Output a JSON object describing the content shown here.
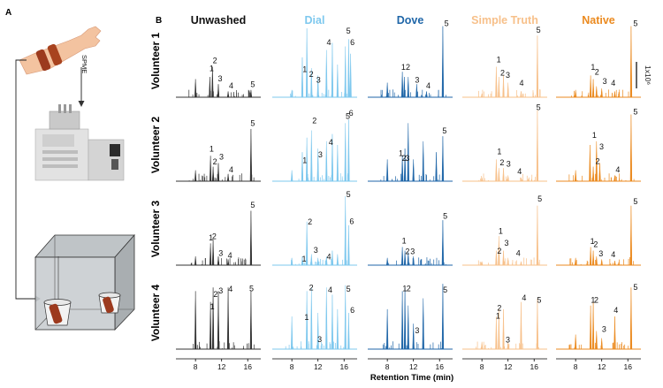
{
  "panel_a_label": "A",
  "panel_b_label": "B",
  "spme_label": "SPME",
  "x_axis_title": "Retention Time (min)",
  "scale_bar_label": "1x10⁶",
  "x_ticks": [
    8,
    12,
    16
  ],
  "x_range": [
    5,
    18
  ],
  "soaps": [
    {
      "name": "Unwashed",
      "color": "#333333",
      "label_color": "#111111"
    },
    {
      "name": "Dial",
      "color": "#7ec8ee",
      "label_color": "#7ec8ee"
    },
    {
      "name": "Dove",
      "color": "#1f66a8",
      "label_color": "#1f66a8"
    },
    {
      "name": "Simple Truth",
      "color": "#f7c08a",
      "label_color": "#f7c08a"
    },
    {
      "name": "Native",
      "color": "#eb8a1f",
      "label_color": "#eb8a1f"
    }
  ],
  "volunteers": [
    "Volunteer 1",
    "Volunteer 2",
    "Volunteer 3",
    "Volunteer 4"
  ],
  "chart_data": {
    "type": "line",
    "title": "",
    "xlabel": "Retention Time (min)",
    "ylabel": "",
    "xlim": [
      5,
      18
    ],
    "ylim": [
      0,
      1
    ],
    "panels": [
      {
        "volunteer": "Volunteer 1",
        "soap": "Unwashed",
        "x": [
          8.0,
          10.2,
          10.6,
          11.5,
          13.0,
          16.5
        ],
        "y": [
          0.25,
          0.28,
          0.42,
          0.18,
          0.08,
          0.1
        ],
        "peak_labels": [
          {
            "text": "1",
            "x": 10.2,
            "y": 0.36
          },
          {
            "text": "2",
            "x": 10.7,
            "y": 0.47
          },
          {
            "text": "3",
            "x": 11.5,
            "y": 0.22
          },
          {
            "text": "4",
            "x": 13.2,
            "y": 0.12
          },
          {
            "text": "5",
            "x": 16.5,
            "y": 0.14
          }
        ]
      },
      {
        "volunteer": "Volunteer 1",
        "soap": "Dial",
        "x": [
          8.0,
          9.6,
          10.3,
          11.0,
          12.0,
          13.3,
          14.2,
          15.0,
          16.2,
          16.7,
          17.0
        ],
        "y": [
          0.1,
          0.55,
          0.95,
          0.4,
          0.3,
          0.65,
          0.75,
          0.45,
          0.7,
          0.8,
          0.6
        ],
        "peak_labels": [
          {
            "text": "1",
            "x": 9.7,
            "y": 0.35
          },
          {
            "text": "2",
            "x": 10.7,
            "y": 0.28
          },
          {
            "text": "3",
            "x": 11.8,
            "y": 0.2
          },
          {
            "text": "4",
            "x": 13.4,
            "y": 0.72
          },
          {
            "text": "5",
            "x": 16.4,
            "y": 0.88
          },
          {
            "text": "6",
            "x": 17.0,
            "y": 0.72
          }
        ]
      },
      {
        "volunteer": "Volunteer 1",
        "soap": "Dove",
        "x": [
          8.0,
          10.3,
          10.6,
          11.2,
          12.5,
          14.0,
          16.5
        ],
        "y": [
          0.2,
          0.35,
          0.28,
          0.28,
          0.18,
          0.08,
          0.98
        ],
        "peak_labels": [
          {
            "text": "1",
            "x": 10.2,
            "y": 0.38
          },
          {
            "text": "2",
            "x": 10.9,
            "y": 0.38
          },
          {
            "text": "3",
            "x": 12.3,
            "y": 0.2
          },
          {
            "text": "4",
            "x": 14.0,
            "y": 0.12
          },
          {
            "text": "5",
            "x": 16.8,
            "y": 0.98
          }
        ]
      },
      {
        "volunteer": "Volunteer 1",
        "soap": "Simple Truth",
        "x": [
          8.0,
          10.2,
          10.6,
          11.3,
          12.0,
          14.0,
          16.5
        ],
        "y": [
          0.05,
          0.42,
          0.28,
          0.3,
          0.2,
          0.08,
          0.85
        ],
        "peak_labels": [
          {
            "text": "1",
            "x": 10.3,
            "y": 0.48
          },
          {
            "text": "2",
            "x": 10.9,
            "y": 0.3
          },
          {
            "text": "3",
            "x": 11.7,
            "y": 0.27
          },
          {
            "text": "4",
            "x": 13.8,
            "y": 0.16
          },
          {
            "text": "5",
            "x": 16.4,
            "y": 0.89
          }
        ]
      },
      {
        "volunteer": "Volunteer 1",
        "soap": "Native",
        "x": [
          8.0,
          10.3,
          10.7,
          11.2,
          12.0,
          14.0,
          16.5
        ],
        "y": [
          0.1,
          0.3,
          0.25,
          0.15,
          0.12,
          0.08,
          0.98
        ],
        "peak_labels": [
          {
            "text": "1",
            "x": 10.4,
            "y": 0.38
          },
          {
            "text": "2",
            "x": 11.0,
            "y": 0.31
          },
          {
            "text": "3",
            "x": 12.2,
            "y": 0.18
          },
          {
            "text": "4",
            "x": 13.5,
            "y": 0.16
          },
          {
            "text": "5",
            "x": 16.9,
            "y": 0.98
          }
        ]
      },
      {
        "volunteer": "Volunteer 2",
        "soap": "Unwashed",
        "x": [
          8.0,
          10.3,
          10.7,
          11.5,
          13.0,
          16.5
        ],
        "y": [
          0.15,
          0.35,
          0.2,
          0.25,
          0.1,
          0.72
        ],
        "peak_labels": [
          {
            "text": "1",
            "x": 10.2,
            "y": 0.41
          },
          {
            "text": "2",
            "x": 10.7,
            "y": 0.23
          },
          {
            "text": "3",
            "x": 11.7,
            "y": 0.3
          },
          {
            "text": "4",
            "x": 13.2,
            "y": 0.12
          },
          {
            "text": "5",
            "x": 16.5,
            "y": 0.76
          }
        ]
      },
      {
        "volunteer": "Volunteer 2",
        "soap": "Dial",
        "x": [
          8.0,
          9.6,
          10.3,
          11.0,
          12.0,
          13.3,
          14.2,
          15.0,
          16.2,
          16.7
        ],
        "y": [
          0.15,
          0.4,
          0.6,
          0.7,
          0.45,
          0.55,
          0.65,
          0.5,
          0.8,
          0.85
        ],
        "peak_labels": [
          {
            "text": "1",
            "x": 9.7,
            "y": 0.25
          },
          {
            "text": "2",
            "x": 11.2,
            "y": 0.8
          },
          {
            "text": "3",
            "x": 12.1,
            "y": 0.33
          },
          {
            "text": "4",
            "x": 13.7,
            "y": 0.5
          },
          {
            "text": "5",
            "x": 16.3,
            "y": 0.86
          },
          {
            "text": "6",
            "x": 16.8,
            "y": 0.9
          }
        ]
      },
      {
        "volunteer": "Volunteer 2",
        "soap": "Dove",
        "x": [
          8.0,
          10.3,
          10.7,
          11.2,
          12.0,
          13.5,
          15.5,
          16.5
        ],
        "y": [
          0.3,
          0.35,
          0.45,
          0.8,
          0.3,
          0.55,
          0.4,
          0.62
        ],
        "peak_labels": [
          {
            "text": "1",
            "x": 9.8,
            "y": 0.35
          },
          {
            "text": "2",
            "x": 10.3,
            "y": 0.28
          },
          {
            "text": "3",
            "x": 10.8,
            "y": 0.28
          },
          {
            "text": "5",
            "x": 16.5,
            "y": 0.66
          }
        ]
      },
      {
        "volunteer": "Volunteer 2",
        "soap": "Simple Truth",
        "x": [
          8.0,
          10.2,
          10.6,
          11.3,
          12.0,
          14.0,
          16.5
        ],
        "y": [
          0.05,
          0.3,
          0.18,
          0.18,
          0.08,
          0.05,
          0.98
        ],
        "peak_labels": [
          {
            "text": "1",
            "x": 10.4,
            "y": 0.37
          },
          {
            "text": "2",
            "x": 10.8,
            "y": 0.22
          },
          {
            "text": "3",
            "x": 11.8,
            "y": 0.2
          },
          {
            "text": "4",
            "x": 13.5,
            "y": 0.1
          },
          {
            "text": "5",
            "x": 16.4,
            "y": 0.98
          }
        ]
      },
      {
        "volunteer": "Volunteer 2",
        "soap": "Native",
        "x": [
          8.0,
          10.2,
          10.7,
          11.2,
          11.7,
          14.0,
          16.5
        ],
        "y": [
          0.15,
          0.5,
          0.2,
          0.55,
          0.25,
          0.08,
          0.92
        ],
        "peak_labels": [
          {
            "text": "1",
            "x": 10.6,
            "y": 0.6
          },
          {
            "text": "2",
            "x": 11.1,
            "y": 0.24
          },
          {
            "text": "3",
            "x": 11.7,
            "y": 0.44
          },
          {
            "text": "4",
            "x": 14.2,
            "y": 0.12
          },
          {
            "text": "5",
            "x": 16.9,
            "y": 0.92
          }
        ]
      },
      {
        "volunteer": "Volunteer 3",
        "soap": "Unwashed",
        "x": [
          8.0,
          10.3,
          10.7,
          11.5,
          13.0,
          16.5
        ],
        "y": [
          0.12,
          0.3,
          0.35,
          0.12,
          0.08,
          0.75
        ],
        "peak_labels": [
          {
            "text": "1",
            "x": 10.1,
            "y": 0.34
          },
          {
            "text": "2",
            "x": 10.6,
            "y": 0.36
          },
          {
            "text": "3",
            "x": 11.6,
            "y": 0.13
          },
          {
            "text": "4",
            "x": 13.0,
            "y": 0.1
          },
          {
            "text": "5",
            "x": 16.5,
            "y": 0.79
          }
        ]
      },
      {
        "volunteer": "Volunteer 3",
        "soap": "Dial",
        "x": [
          8.0,
          9.6,
          10.3,
          11.0,
          12.0,
          13.3,
          14.2,
          15.0,
          16.2,
          16.7
        ],
        "y": [
          0.1,
          0.12,
          0.6,
          0.15,
          0.1,
          0.12,
          0.2,
          0.15,
          0.95,
          0.55
        ],
        "peak_labels": [
          {
            "text": "1",
            "x": 9.6,
            "y": 0.05
          },
          {
            "text": "2",
            "x": 10.5,
            "y": 0.56
          },
          {
            "text": "3",
            "x": 11.4,
            "y": 0.17
          },
          {
            "text": "4",
            "x": 13.4,
            "y": 0.08
          },
          {
            "text": "5",
            "x": 16.4,
            "y": 0.94
          },
          {
            "text": "6",
            "x": 16.9,
            "y": 0.57
          }
        ]
      },
      {
        "volunteer": "Volunteer 3",
        "soap": "Dove",
        "x": [
          8.0,
          10.3,
          10.7,
          11.2,
          12.0,
          16.5
        ],
        "y": [
          0.1,
          0.25,
          0.2,
          0.18,
          0.12,
          0.62
        ],
        "peak_labels": [
          {
            "text": "1",
            "x": 10.3,
            "y": 0.3
          },
          {
            "text": "2",
            "x": 10.8,
            "y": 0.15
          },
          {
            "text": "3",
            "x": 11.6,
            "y": 0.15
          },
          {
            "text": "5",
            "x": 16.6,
            "y": 0.64
          }
        ]
      },
      {
        "volunteer": "Volunteer 3",
        "soap": "Simple Truth",
        "x": [
          8.0,
          10.2,
          10.6,
          11.3,
          12.0,
          14.0,
          16.5
        ],
        "y": [
          0.05,
          0.2,
          0.4,
          0.2,
          0.1,
          0.05,
          0.82
        ],
        "peak_labels": [
          {
            "text": "1",
            "x": 10.6,
            "y": 0.43
          },
          {
            "text": "2",
            "x": 10.4,
            "y": 0.16
          },
          {
            "text": "3",
            "x": 11.5,
            "y": 0.27
          },
          {
            "text": "4",
            "x": 13.3,
            "y": 0.13
          },
          {
            "text": "5",
            "x": 16.6,
            "y": 0.88
          }
        ]
      },
      {
        "volunteer": "Volunteer 3",
        "soap": "Native",
        "x": [
          8.0,
          10.3,
          10.7,
          11.2,
          12.0,
          14.0,
          16.5
        ],
        "y": [
          0.1,
          0.25,
          0.2,
          0.12,
          0.08,
          0.06,
          0.82
        ],
        "peak_labels": [
          {
            "text": "1",
            "x": 10.3,
            "y": 0.29
          },
          {
            "text": "2",
            "x": 10.8,
            "y": 0.25
          },
          {
            "text": "3",
            "x": 11.6,
            "y": 0.12
          },
          {
            "text": "4",
            "x": 13.5,
            "y": 0.11
          },
          {
            "text": "5",
            "x": 16.9,
            "y": 0.84
          }
        ]
      },
      {
        "volunteer": "Volunteer 4",
        "soap": "Unwashed",
        "x": [
          8.0,
          10.3,
          10.7,
          11.5,
          13.0,
          16.5
        ],
        "y": [
          0.8,
          0.65,
          0.85,
          0.8,
          0.85,
          0.8
        ],
        "peak_labels": [
          {
            "text": "1",
            "x": 10.3,
            "y": 0.55
          },
          {
            "text": "2",
            "x": 10.8,
            "y": 0.72
          },
          {
            "text": "3",
            "x": 11.6,
            "y": 0.77
          },
          {
            "text": "4",
            "x": 13.1,
            "y": 0.79
          },
          {
            "text": "5",
            "x": 16.3,
            "y": 0.8
          }
        ]
      },
      {
        "volunteer": "Volunteer 4",
        "soap": "Dial",
        "x": [
          8.0,
          10.3,
          11.0,
          12.0,
          13.3,
          14.2,
          15.0,
          16.2,
          16.7
        ],
        "y": [
          0.45,
          0.8,
          0.85,
          0.5,
          0.85,
          0.75,
          0.55,
          0.88,
          0.5
        ],
        "peak_labels": [
          {
            "text": "1",
            "x": 10.0,
            "y": 0.4
          },
          {
            "text": "2",
            "x": 10.7,
            "y": 0.81
          },
          {
            "text": "3",
            "x": 12.0,
            "y": 0.1
          },
          {
            "text": "4",
            "x": 13.6,
            "y": 0.78
          },
          {
            "text": "5",
            "x": 16.4,
            "y": 0.79
          },
          {
            "text": "6",
            "x": 17.0,
            "y": 0.5
          }
        ]
      },
      {
        "volunteer": "Volunteer 4",
        "soap": "Dove",
        "x": [
          8.0,
          10.3,
          10.7,
          11.2,
          12.0,
          13.5,
          16.5
        ],
        "y": [
          0.55,
          0.8,
          0.85,
          0.6,
          0.35,
          0.7,
          0.9
        ],
        "peak_labels": [
          {
            "text": "1",
            "x": 10.4,
            "y": 0.8
          },
          {
            "text": "2",
            "x": 11.0,
            "y": 0.8
          },
          {
            "text": "3",
            "x": 12.3,
            "y": 0.22
          },
          {
            "text": "5",
            "x": 16.6,
            "y": 0.78
          }
        ]
      },
      {
        "volunteer": "Volunteer 4",
        "soap": "Simple Truth",
        "x": [
          8.0,
          10.2,
          10.6,
          11.3,
          12.0,
          14.0,
          16.5
        ],
        "y": [
          0.1,
          0.45,
          0.55,
          0.55,
          0.1,
          0.65,
          0.7
        ],
        "peak_labels": [
          {
            "text": "1",
            "x": 10.2,
            "y": 0.42
          },
          {
            "text": "2",
            "x": 10.4,
            "y": 0.53
          },
          {
            "text": "3",
            "x": 11.7,
            "y": 0.09
          },
          {
            "text": "4",
            "x": 14.2,
            "y": 0.67
          },
          {
            "text": "5",
            "x": 16.5,
            "y": 0.64
          }
        ]
      },
      {
        "volunteer": "Volunteer 4",
        "soap": "Native",
        "x": [
          8.0,
          10.3,
          10.7,
          11.2,
          12.0,
          14.0,
          16.5
        ],
        "y": [
          0.2,
          0.6,
          0.65,
          0.25,
          0.15,
          0.45,
          0.85
        ],
        "peak_labels": [
          {
            "text": "1",
            "x": 10.4,
            "y": 0.64
          },
          {
            "text": "2",
            "x": 10.9,
            "y": 0.64
          },
          {
            "text": "3",
            "x": 12.1,
            "y": 0.24
          },
          {
            "text": "4",
            "x": 13.9,
            "y": 0.5
          },
          {
            "text": "5",
            "x": 16.9,
            "y": 0.82
          }
        ]
      }
    ]
  }
}
